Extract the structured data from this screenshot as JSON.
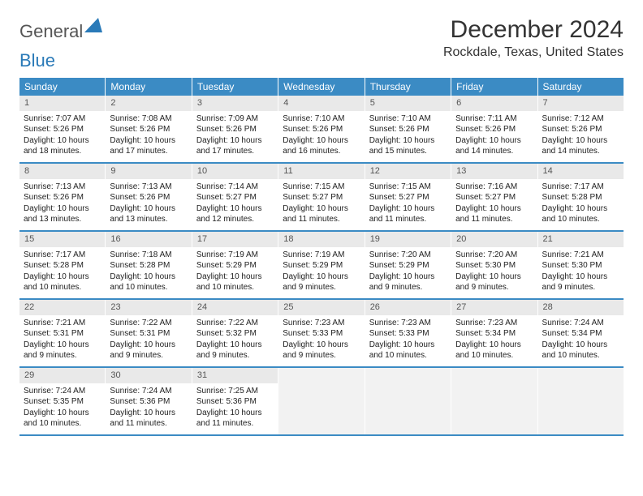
{
  "logo": {
    "part1": "General",
    "part2": "Blue"
  },
  "title": "December 2024",
  "location": "Rockdale, Texas, United States",
  "colors": {
    "header_bg": "#3b8bc4",
    "header_text": "#ffffff",
    "daynum_bg": "#e9e9e9",
    "empty_bg": "#f2f2f2",
    "row_divider": "#3b8bc4",
    "logo_blue": "#2a7ab8"
  },
  "weekdays": [
    "Sunday",
    "Monday",
    "Tuesday",
    "Wednesday",
    "Thursday",
    "Friday",
    "Saturday"
  ],
  "days": [
    {
      "n": 1,
      "sunrise": "7:07 AM",
      "sunset": "5:26 PM",
      "daylight": "10 hours and 18 minutes."
    },
    {
      "n": 2,
      "sunrise": "7:08 AM",
      "sunset": "5:26 PM",
      "daylight": "10 hours and 17 minutes."
    },
    {
      "n": 3,
      "sunrise": "7:09 AM",
      "sunset": "5:26 PM",
      "daylight": "10 hours and 17 minutes."
    },
    {
      "n": 4,
      "sunrise": "7:10 AM",
      "sunset": "5:26 PM",
      "daylight": "10 hours and 16 minutes."
    },
    {
      "n": 5,
      "sunrise": "7:10 AM",
      "sunset": "5:26 PM",
      "daylight": "10 hours and 15 minutes."
    },
    {
      "n": 6,
      "sunrise": "7:11 AM",
      "sunset": "5:26 PM",
      "daylight": "10 hours and 14 minutes."
    },
    {
      "n": 7,
      "sunrise": "7:12 AM",
      "sunset": "5:26 PM",
      "daylight": "10 hours and 14 minutes."
    },
    {
      "n": 8,
      "sunrise": "7:13 AM",
      "sunset": "5:26 PM",
      "daylight": "10 hours and 13 minutes."
    },
    {
      "n": 9,
      "sunrise": "7:13 AM",
      "sunset": "5:26 PM",
      "daylight": "10 hours and 13 minutes."
    },
    {
      "n": 10,
      "sunrise": "7:14 AM",
      "sunset": "5:27 PM",
      "daylight": "10 hours and 12 minutes."
    },
    {
      "n": 11,
      "sunrise": "7:15 AM",
      "sunset": "5:27 PM",
      "daylight": "10 hours and 11 minutes."
    },
    {
      "n": 12,
      "sunrise": "7:15 AM",
      "sunset": "5:27 PM",
      "daylight": "10 hours and 11 minutes."
    },
    {
      "n": 13,
      "sunrise": "7:16 AM",
      "sunset": "5:27 PM",
      "daylight": "10 hours and 11 minutes."
    },
    {
      "n": 14,
      "sunrise": "7:17 AM",
      "sunset": "5:28 PM",
      "daylight": "10 hours and 10 minutes."
    },
    {
      "n": 15,
      "sunrise": "7:17 AM",
      "sunset": "5:28 PM",
      "daylight": "10 hours and 10 minutes."
    },
    {
      "n": 16,
      "sunrise": "7:18 AM",
      "sunset": "5:28 PM",
      "daylight": "10 hours and 10 minutes."
    },
    {
      "n": 17,
      "sunrise": "7:19 AM",
      "sunset": "5:29 PM",
      "daylight": "10 hours and 10 minutes."
    },
    {
      "n": 18,
      "sunrise": "7:19 AM",
      "sunset": "5:29 PM",
      "daylight": "10 hours and 9 minutes."
    },
    {
      "n": 19,
      "sunrise": "7:20 AM",
      "sunset": "5:29 PM",
      "daylight": "10 hours and 9 minutes."
    },
    {
      "n": 20,
      "sunrise": "7:20 AM",
      "sunset": "5:30 PM",
      "daylight": "10 hours and 9 minutes."
    },
    {
      "n": 21,
      "sunrise": "7:21 AM",
      "sunset": "5:30 PM",
      "daylight": "10 hours and 9 minutes."
    },
    {
      "n": 22,
      "sunrise": "7:21 AM",
      "sunset": "5:31 PM",
      "daylight": "10 hours and 9 minutes."
    },
    {
      "n": 23,
      "sunrise": "7:22 AM",
      "sunset": "5:31 PM",
      "daylight": "10 hours and 9 minutes."
    },
    {
      "n": 24,
      "sunrise": "7:22 AM",
      "sunset": "5:32 PM",
      "daylight": "10 hours and 9 minutes."
    },
    {
      "n": 25,
      "sunrise": "7:23 AM",
      "sunset": "5:33 PM",
      "daylight": "10 hours and 9 minutes."
    },
    {
      "n": 26,
      "sunrise": "7:23 AM",
      "sunset": "5:33 PM",
      "daylight": "10 hours and 10 minutes."
    },
    {
      "n": 27,
      "sunrise": "7:23 AM",
      "sunset": "5:34 PM",
      "daylight": "10 hours and 10 minutes."
    },
    {
      "n": 28,
      "sunrise": "7:24 AM",
      "sunset": "5:34 PM",
      "daylight": "10 hours and 10 minutes."
    },
    {
      "n": 29,
      "sunrise": "7:24 AM",
      "sunset": "5:35 PM",
      "daylight": "10 hours and 10 minutes."
    },
    {
      "n": 30,
      "sunrise": "7:24 AM",
      "sunset": "5:36 PM",
      "daylight": "10 hours and 11 minutes."
    },
    {
      "n": 31,
      "sunrise": "7:25 AM",
      "sunset": "5:36 PM",
      "daylight": "10 hours and 11 minutes."
    }
  ],
  "labels": {
    "sunrise": "Sunrise:",
    "sunset": "Sunset:",
    "daylight": "Daylight:"
  },
  "layout": {
    "first_weekday_index": 0,
    "total_cells": 35
  }
}
